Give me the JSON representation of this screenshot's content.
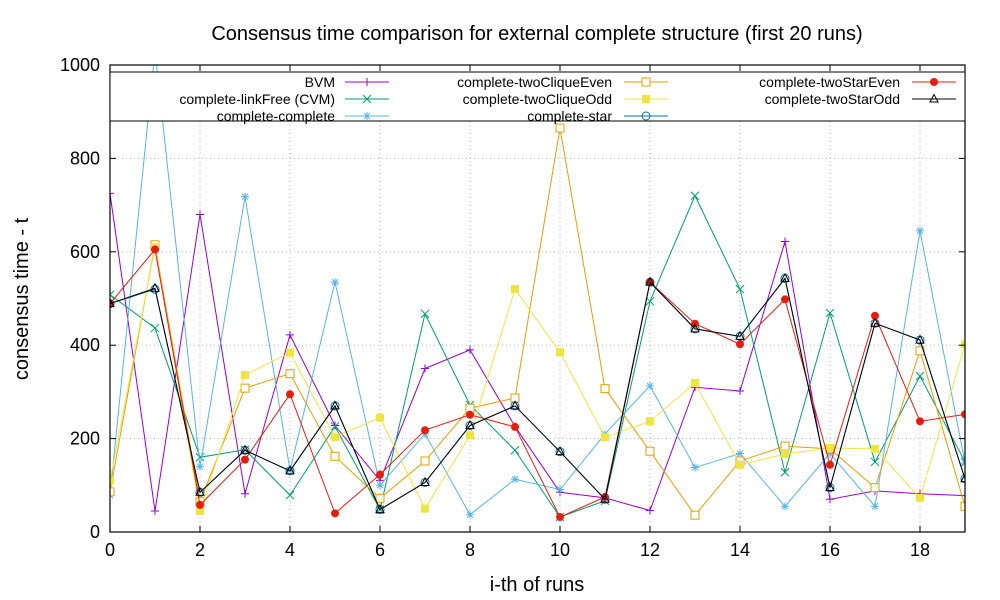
{
  "chart_data": {
    "type": "line",
    "title": "Consensus time comparison for external complete structure (first 20 runs)",
    "xlabel": "i-th of runs",
    "ylabel": "consensus time - t",
    "xlim": [
      0,
      19
    ],
    "ylim": [
      0,
      1000
    ],
    "xticks": [
      0,
      2,
      4,
      6,
      8,
      10,
      12,
      14,
      16,
      18
    ],
    "yticks": [
      0,
      200,
      400,
      600,
      800,
      1000
    ],
    "grid": true,
    "legend_position": "top",
    "x": [
      0,
      1,
      2,
      3,
      4,
      5,
      6,
      7,
      8,
      9,
      10,
      11,
      12,
      13,
      14,
      15,
      16,
      17,
      18,
      19
    ],
    "series": [
      {
        "name": "BVM",
        "color": "#9400d3",
        "marker": "plus",
        "values": [
          725,
          45,
          680,
          82,
          422,
          228,
          110,
          350,
          390,
          226,
          85,
          73,
          46,
          310,
          302,
          622,
          70,
          88,
          82,
          78
        ]
      },
      {
        "name": "complete-linkFree (CVM)",
        "color": "#009e73",
        "marker": "cross",
        "values": [
          508,
          437,
          160,
          176,
          79,
          226,
          48,
          467,
          272,
          175,
          32,
          67,
          494,
          720,
          520,
          128,
          469,
          150,
          334,
          150
        ]
      },
      {
        "name": "complete-complete",
        "color": "#56b4e9",
        "marker": "asterisk",
        "values": [
          79,
          1030,
          140,
          718,
          132,
          535,
          100,
          210,
          37,
          113,
          91,
          210,
          313,
          138,
          168,
          55,
          168,
          55,
          645,
          148
        ]
      },
      {
        "name": "complete-twoCliqueEven",
        "color": "#e69f00",
        "marker": "open-square",
        "values": [
          86,
          615,
          65,
          308,
          339,
          162,
          72,
          152,
          265,
          287,
          865,
          307,
          173,
          36,
          152,
          184,
          178,
          95,
          388,
          55
        ]
      },
      {
        "name": "complete-twoCliqueOdd",
        "color": "#f0e442",
        "marker": "filled-square",
        "values": [
          110,
          610,
          45,
          336,
          384,
          203,
          245,
          50,
          207,
          520,
          385,
          203,
          237,
          319,
          144,
          167,
          180,
          178,
          73,
          402
        ]
      },
      {
        "name": "complete-star",
        "color": "#0072b2",
        "marker": "open-circle",
        "values": [
          489,
          520,
          85,
          175,
          131,
          270,
          48,
          106,
          228,
          270,
          172,
          70,
          535,
          435,
          419,
          543,
          95,
          447,
          411,
          114
        ]
      },
      {
        "name": "complete-twoStarEven",
        "color": "#e51e10",
        "marker": "filled-circle",
        "values": [
          489,
          605,
          58,
          155,
          295,
          40,
          123,
          218,
          251,
          225,
          32,
          75,
          535,
          446,
          402,
          498,
          144,
          463,
          237,
          252
        ]
      },
      {
        "name": "complete-twoStarOdd",
        "color": "#000000",
        "marker": "open-triangle",
        "values": [
          489,
          522,
          85,
          175,
          131,
          270,
          48,
          106,
          228,
          270,
          172,
          70,
          535,
          435,
          419,
          543,
          95,
          447,
          411,
          114
        ]
      }
    ]
  }
}
